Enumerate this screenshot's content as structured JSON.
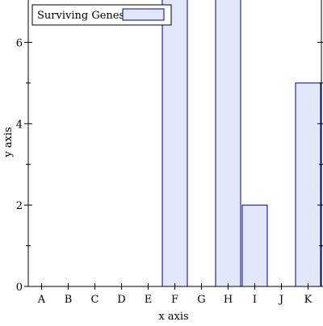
{
  "chart_data": {
    "type": "bar",
    "title": "",
    "xlabel": "x axis",
    "ylabel": "y axis",
    "categories": [
      "A",
      "B",
      "C",
      "D",
      "E",
      "F",
      "G",
      "H",
      "I",
      "J",
      "K"
    ],
    "series": [
      {
        "name": "Surviving Genes",
        "values": [
          0,
          0,
          0,
          0,
          0,
          7,
          0,
          7,
          2,
          0,
          5
        ],
        "fill_color": "#e2e8fb",
        "stroke_color": "#000080"
      }
    ],
    "ylim": [
      0,
      7
    ],
    "yticks": [
      "0",
      "2",
      "4",
      "6"
    ],
    "grid": false,
    "legend_position": "top-left"
  }
}
